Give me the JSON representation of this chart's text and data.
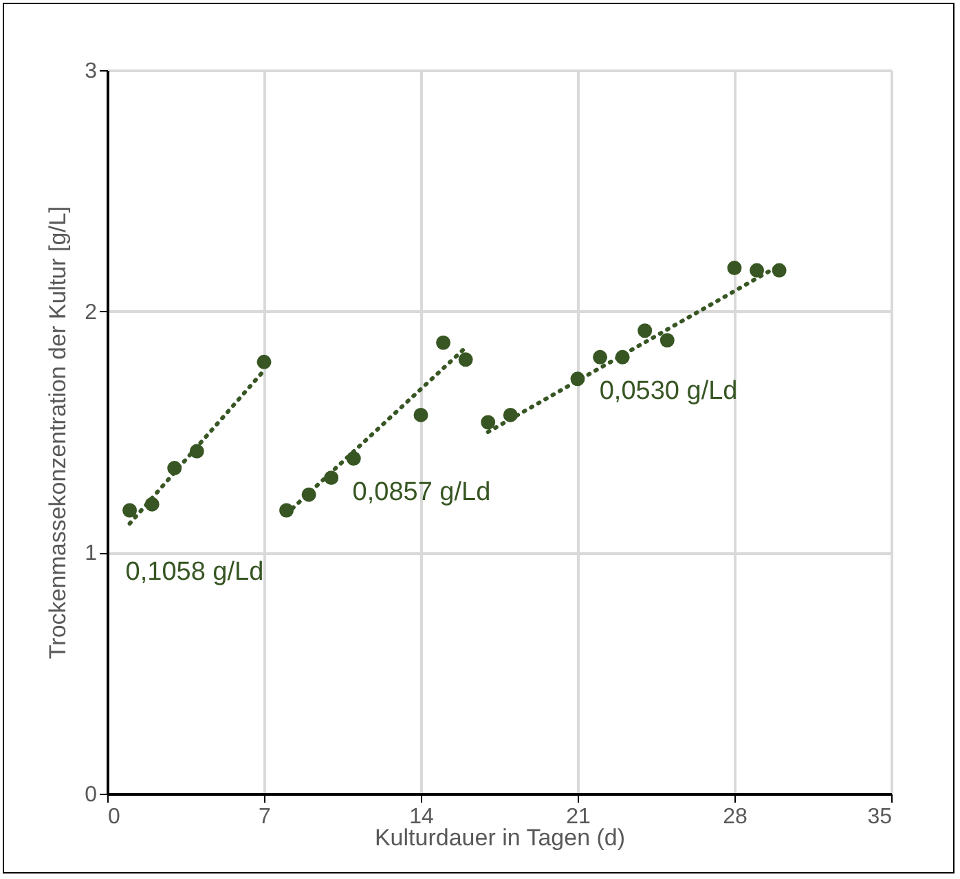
{
  "chart_data": {
    "type": "scatter",
    "xlabel": "Kulturdauer in Tagen (d)",
    "ylabel": "Trockenmassekonzentration der Kultur [g/L]",
    "xlim": [
      0,
      35
    ],
    "ylim": [
      0,
      3
    ],
    "xticks": [
      0,
      7,
      14,
      21,
      28,
      35
    ],
    "yticks": [
      0,
      1,
      2,
      3
    ],
    "grid": true,
    "marker": "circle",
    "series": [
      {
        "color": "#375623",
        "x": [
          1,
          2,
          3,
          4,
          7
        ],
        "values": [
          1.175,
          1.2,
          1.35,
          1.42,
          1.79
        ]
      },
      {
        "color": "#375623",
        "x": [
          8,
          9,
          10,
          11,
          14,
          15,
          16
        ],
        "values": [
          1.175,
          1.24,
          1.31,
          1.39,
          1.57,
          1.87,
          1.8
        ]
      },
      {
        "color": "#375623",
        "x": [
          17,
          18,
          21,
          22,
          23,
          24,
          25,
          28,
          29,
          30
        ],
        "values": [
          1.54,
          1.57,
          1.72,
          1.81,
          1.81,
          1.92,
          1.88,
          2.18,
          2.17,
          2.17
        ]
      },
      {
        "type": "line",
        "marker": "none",
        "line_style": "dotted",
        "color": "#375623",
        "x": [
          1,
          7
        ],
        "values": [
          1.12,
          1.755
        ]
      },
      {
        "type": "line",
        "marker": "none",
        "line_style": "dotted",
        "color": "#375623",
        "x": [
          8,
          16
        ],
        "values": [
          1.16,
          1.85
        ]
      },
      {
        "type": "line",
        "marker": "none",
        "line_style": "dotted",
        "color": "#375623",
        "x": [
          17,
          30
        ],
        "values": [
          1.5,
          2.19
        ]
      }
    ],
    "annotations": [
      "0,1058 g/Ld",
      "0,0857 g/Ld",
      "0,0530 g/Ld"
    ]
  }
}
